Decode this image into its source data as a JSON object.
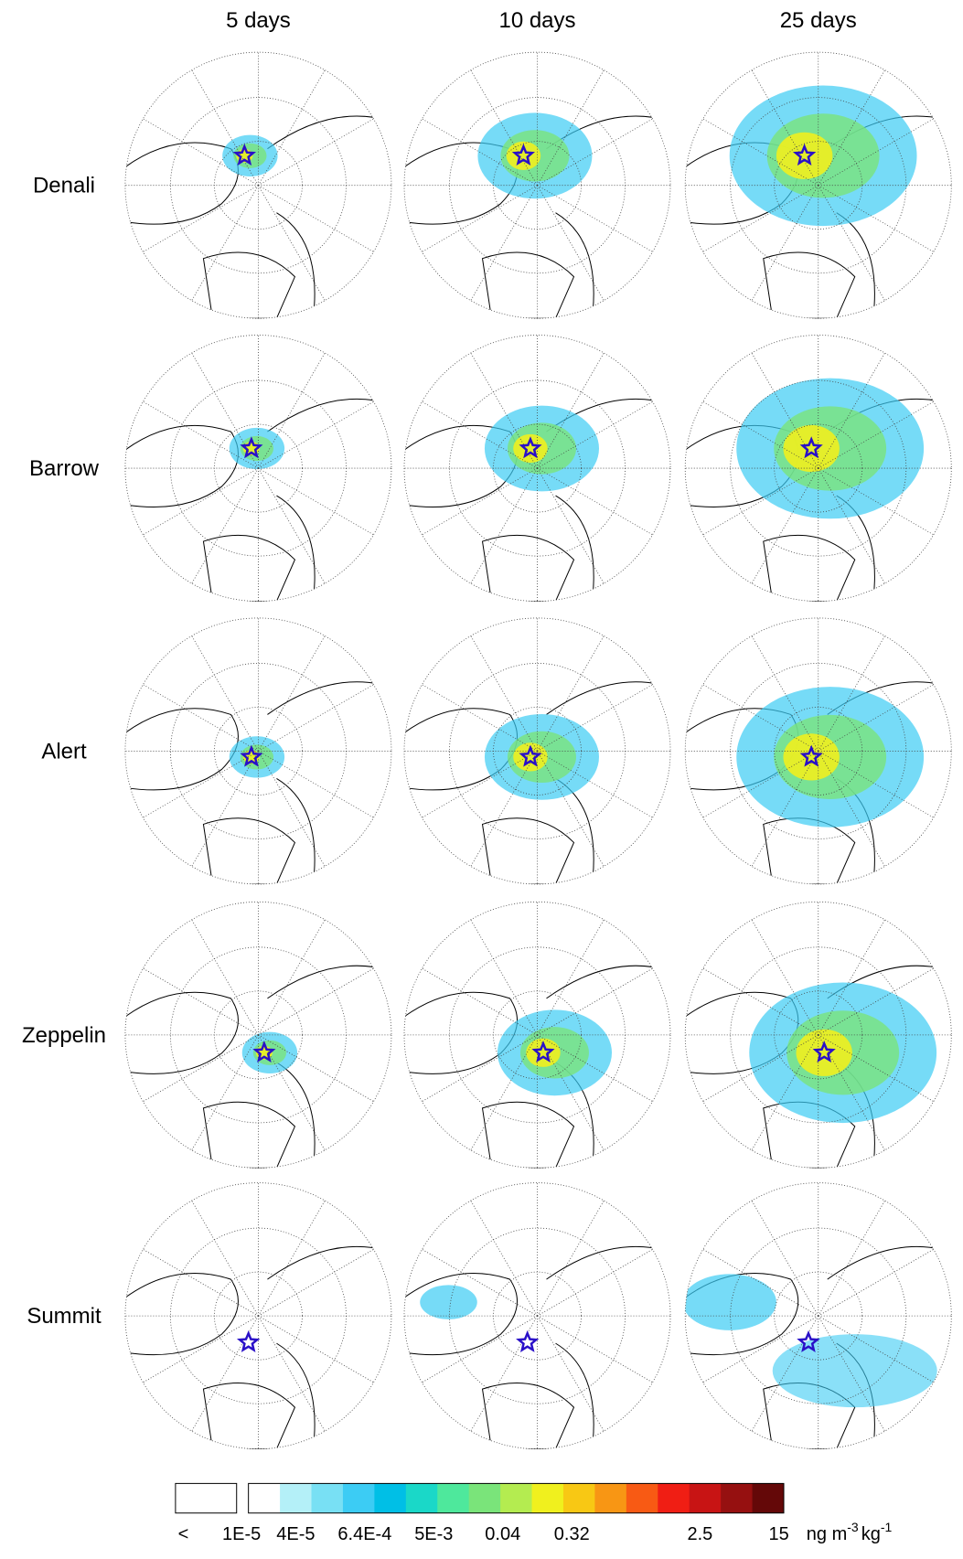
{
  "columns": [
    "5 days",
    "10 days",
    "25 days"
  ],
  "rows": [
    "Denali",
    "Barrow",
    "Alert",
    "Zeppelin",
    "Summit"
  ],
  "colorbar": {
    "under_label": "<",
    "labels": [
      "1E-5",
      "4E-5",
      "6.4E-4",
      "5E-3",
      "0.04",
      "0.32",
      "2.5",
      "15"
    ],
    "colors": [
      "#ffffff",
      "#b4f0f8",
      "#78e0f4",
      "#3cccf4",
      "#00bfe6",
      "#1ad8c8",
      "#4ee89c",
      "#7ae47a",
      "#b4ec50",
      "#f0f01e",
      "#f8c814",
      "#f89614",
      "#f85a14",
      "#f01e14",
      "#c81414",
      "#961010",
      "#640808"
    ],
    "unit": {
      "base": "ng m",
      "exp1": "-3",
      "mid": "kg",
      "exp2": "-1"
    }
  }
}
